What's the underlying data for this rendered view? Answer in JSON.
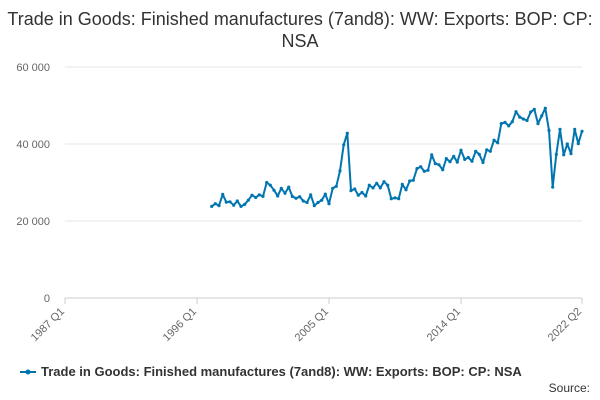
{
  "chart_data": {
    "type": "line",
    "title": "Trade in Goods: Finished manufactures (7and8): WW: Exports: BOP: CP: NSA",
    "xlabel": "",
    "ylabel": "",
    "ylim": [
      0,
      60000
    ],
    "yticks": [
      0,
      20000,
      40000,
      60000
    ],
    "ytick_labels": [
      "0",
      "20 000",
      "40 000",
      "60 000"
    ],
    "xlim": [
      1987.0,
      2022.25
    ],
    "xticks": [
      1987.0,
      1996.0,
      2005.0,
      2014.0,
      2022.25
    ],
    "xtick_labels": [
      "1987 Q1",
      "1996 Q1",
      "2005 Q1",
      "2014 Q1",
      "2022 Q2"
    ],
    "grid": "horizontal",
    "legend_position": "bottom",
    "source_label": "Source:",
    "series": [
      {
        "name": "Trade in Goods: Finished manufactures (7and8): WW: Exports: BOP: CP: NSA",
        "color": "#0075B0",
        "x": [
          1997.0,
          1997.25,
          1997.5,
          1997.75,
          1998.0,
          1998.25,
          1998.5,
          1998.75,
          1999.0,
          1999.25,
          1999.5,
          1999.75,
          2000.0,
          2000.25,
          2000.5,
          2000.75,
          2001.0,
          2001.25,
          2001.5,
          2001.75,
          2002.0,
          2002.25,
          2002.5,
          2002.75,
          2003.0,
          2003.25,
          2003.5,
          2003.75,
          2004.0,
          2004.25,
          2004.5,
          2004.75,
          2005.0,
          2005.25,
          2005.5,
          2005.75,
          2006.0,
          2006.25,
          2006.5,
          2006.75,
          2007.0,
          2007.25,
          2007.5,
          2007.75,
          2008.0,
          2008.25,
          2008.5,
          2008.75,
          2009.0,
          2009.25,
          2009.5,
          2009.75,
          2010.0,
          2010.25,
          2010.5,
          2010.75,
          2011.0,
          2011.25,
          2011.5,
          2011.75,
          2012.0,
          2012.25,
          2012.5,
          2012.75,
          2013.0,
          2013.25,
          2013.5,
          2013.75,
          2014.0,
          2014.25,
          2014.5,
          2014.75,
          2015.0,
          2015.25,
          2015.5,
          2015.75,
          2016.0,
          2016.25,
          2016.5,
          2016.75,
          2017.0,
          2017.25,
          2017.5,
          2017.75,
          2018.0,
          2018.25,
          2018.5,
          2018.75,
          2019.0,
          2019.25,
          2019.5,
          2019.75,
          2020.0,
          2020.25,
          2020.5,
          2020.75,
          2021.0,
          2021.25,
          2021.5,
          2021.75,
          2022.0,
          2022.25
        ],
        "y": [
          23800,
          24500,
          24000,
          26900,
          24900,
          25000,
          24100,
          25200,
          23800,
          24300,
          25400,
          26700,
          26100,
          26800,
          26400,
          30000,
          29300,
          28000,
          26500,
          28500,
          27200,
          28800,
          26400,
          25900,
          26300,
          25200,
          24800,
          26800,
          24000,
          24800,
          25400,
          27000,
          24500,
          28500,
          29000,
          33000,
          39800,
          42800,
          27900,
          28300,
          26700,
          27400,
          26500,
          29300,
          28600,
          29800,
          28600,
          30200,
          29300,
          25800,
          26000,
          25800,
          29500,
          28100,
          30400,
          30600,
          33600,
          34100,
          32900,
          33200,
          37200,
          34900,
          34600,
          33300,
          36200,
          35400,
          36800,
          35300,
          38400,
          36000,
          36500,
          35500,
          38100,
          37300,
          35200,
          38500,
          38100,
          41000,
          40300,
          45300,
          45600,
          44700,
          45800,
          48400,
          47000,
          46500,
          46100,
          48300,
          49000,
          45300,
          47300,
          49300,
          43500,
          28800,
          37300,
          43800,
          37200,
          40000,
          37500,
          43800,
          40100,
          43300
        ]
      }
    ]
  }
}
